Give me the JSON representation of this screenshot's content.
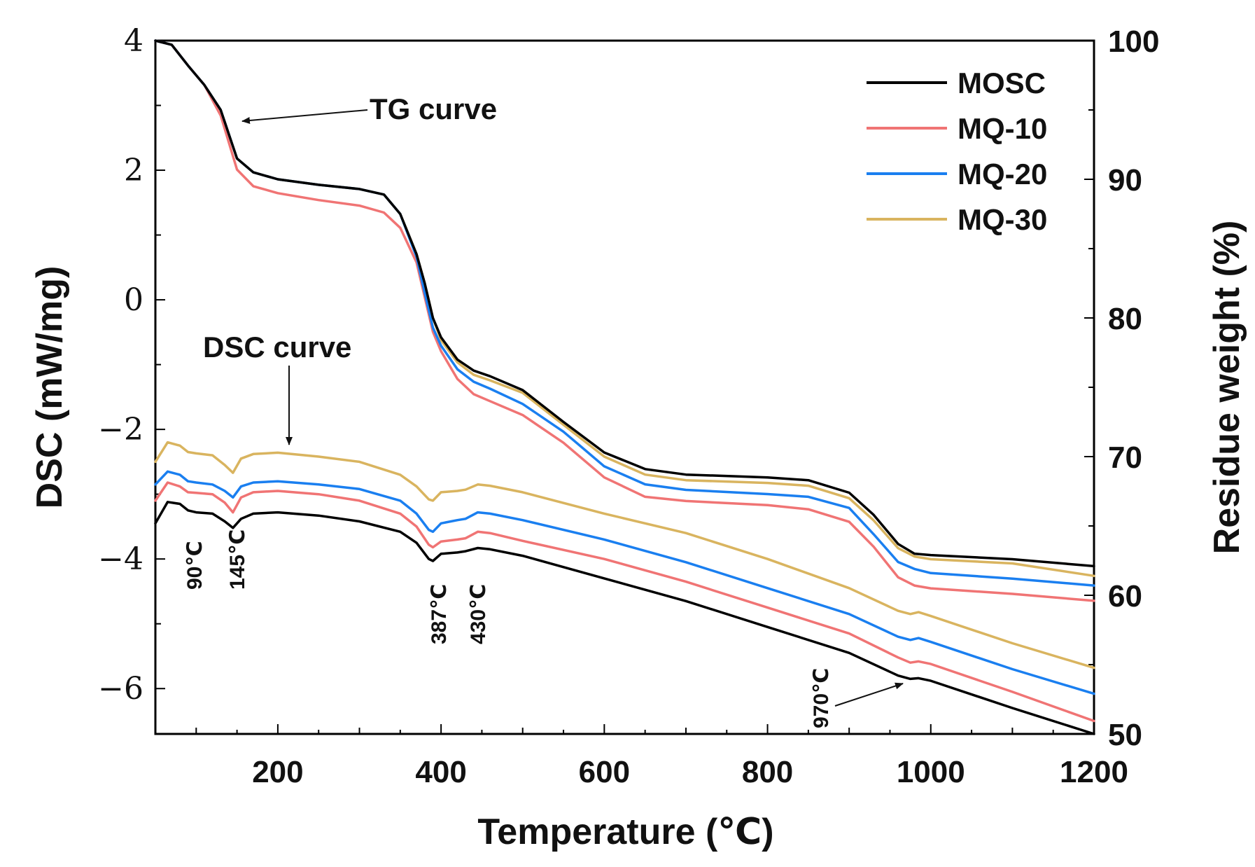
{
  "chart_data": {
    "type": "line",
    "x_axis": {
      "label": "Temperature (℃)",
      "range": [
        50,
        1200
      ],
      "ticks": [
        200,
        400,
        600,
        800,
        1000,
        1200
      ]
    },
    "y_left": {
      "label": "DSC (mW/mg)",
      "range": [
        -6.7,
        4
      ],
      "ticks": [
        "4",
        "2",
        "0",
        "−2",
        "−4",
        "−6"
      ],
      "tick_values": [
        4,
        2,
        0,
        -2,
        -4,
        -6
      ]
    },
    "y_right": {
      "label": "Residue weight (%)",
      "range": [
        50,
        100
      ],
      "ticks": [
        50,
        60,
        70,
        80,
        90,
        100
      ]
    },
    "legend": {
      "position": "top-right",
      "entries": [
        "MOSC",
        "MQ-10",
        "MQ-20",
        "MQ-30"
      ]
    },
    "colors": {
      "MOSC": "#000000",
      "MQ-10": "#f07474",
      "MQ-20": "#1a7ff0",
      "MQ-30": "#d9b45f"
    },
    "annotations": {
      "tg_curve": "TG curve",
      "dsc_curve": "DSC curve",
      "peaks": [
        "90℃",
        "145℃",
        "387℃",
        "430℃",
        "970℃"
      ]
    },
    "series_tg": [
      {
        "name": "MOSC",
        "axis": "right",
        "x": [
          50,
          70,
          90,
          110,
          130,
          150,
          170,
          200,
          250,
          300,
          330,
          350,
          370,
          380,
          390,
          400,
          420,
          440,
          460,
          500,
          550,
          600,
          650,
          700,
          800,
          850,
          900,
          930,
          960,
          980,
          1000,
          1100,
          1200
        ],
        "y": [
          100,
          99.7,
          98.2,
          96.8,
          95,
          91.5,
          90.5,
          90,
          89.6,
          89.3,
          88.9,
          87.5,
          84.6,
          82.5,
          80,
          78.6,
          77,
          76.2,
          75.8,
          74.8,
          72.5,
          70.3,
          69.1,
          68.7,
          68.5,
          68.3,
          67.4,
          65.8,
          63.7,
          63,
          62.9,
          62.6,
          62.1
        ]
      },
      {
        "name": "MQ-10",
        "axis": "right",
        "x": [
          50,
          70,
          90,
          110,
          130,
          150,
          170,
          200,
          250,
          300,
          330,
          350,
          370,
          380,
          390,
          400,
          420,
          440,
          460,
          500,
          550,
          600,
          650,
          700,
          800,
          850,
          900,
          930,
          960,
          980,
          1000,
          1100,
          1200
        ],
        "y": [
          100,
          99.7,
          98.2,
          96.8,
          94.6,
          90.7,
          89.5,
          89,
          88.5,
          88.1,
          87.6,
          86.5,
          84,
          81.5,
          79,
          77.6,
          75.6,
          74.5,
          74,
          73,
          71,
          68.5,
          67.1,
          66.8,
          66.5,
          66.2,
          65.3,
          63.5,
          61.3,
          60.7,
          60.5,
          60.1,
          59.6
        ]
      },
      {
        "name": "MQ-20",
        "axis": "right",
        "x": [
          50,
          70,
          90,
          110,
          130,
          150,
          170,
          200,
          250,
          300,
          330,
          350,
          370,
          380,
          390,
          400,
          420,
          440,
          460,
          500,
          550,
          600,
          650,
          700,
          800,
          850,
          900,
          930,
          960,
          980,
          1000,
          1100,
          1200
        ],
        "y": [
          100,
          99.7,
          98.2,
          96.8,
          95,
          91.5,
          90.5,
          90,
          89.6,
          89.3,
          88.9,
          87.5,
          84.4,
          81.8,
          79.3,
          78,
          76.3,
          75.4,
          74.9,
          73.8,
          71.8,
          69.3,
          68,
          67.6,
          67.3,
          67.1,
          66.3,
          64.4,
          62.4,
          61.9,
          61.6,
          61.2,
          60.7
        ]
      },
      {
        "name": "MQ-30",
        "axis": "right",
        "x": [
          50,
          70,
          90,
          110,
          130,
          150,
          170,
          200,
          250,
          300,
          330,
          350,
          370,
          380,
          390,
          400,
          420,
          440,
          460,
          500,
          550,
          600,
          650,
          700,
          800,
          850,
          900,
          930,
          960,
          980,
          1000,
          1100,
          1200
        ],
        "y": [
          100,
          99.7,
          98.2,
          96.8,
          95,
          91.5,
          90.5,
          90,
          89.6,
          89.3,
          88.9,
          87.5,
          84.6,
          82.5,
          80,
          78.4,
          76.8,
          75.9,
          75.5,
          74.6,
          72.3,
          70,
          68.7,
          68.3,
          68.1,
          67.9,
          67,
          65.4,
          63.4,
          62.8,
          62.6,
          62.3,
          61.4
        ]
      }
    ],
    "series_dsc": [
      {
        "name": "MOSC",
        "axis": "left",
        "x": [
          50,
          65,
          80,
          90,
          100,
          120,
          135,
          145,
          155,
          170,
          200,
          250,
          300,
          350,
          370,
          385,
          390,
          400,
          420,
          430,
          445,
          460,
          500,
          600,
          700,
          800,
          900,
          960,
          975,
          985,
          1000,
          1100,
          1200
        ],
        "y": [
          -3.45,
          -3.12,
          -3.15,
          -3.25,
          -3.28,
          -3.3,
          -3.42,
          -3.52,
          -3.38,
          -3.3,
          -3.28,
          -3.33,
          -3.42,
          -3.58,
          -3.75,
          -4.0,
          -4.03,
          -3.92,
          -3.9,
          -3.88,
          -3.83,
          -3.85,
          -3.95,
          -4.3,
          -4.65,
          -5.05,
          -5.45,
          -5.8,
          -5.85,
          -5.84,
          -5.88,
          -6.3,
          -6.7
        ]
      },
      {
        "name": "MQ-10",
        "axis": "left",
        "x": [
          50,
          65,
          80,
          90,
          100,
          120,
          135,
          145,
          155,
          170,
          200,
          250,
          300,
          350,
          370,
          385,
          390,
          400,
          420,
          430,
          445,
          460,
          500,
          600,
          700,
          800,
          900,
          960,
          975,
          985,
          1000,
          1100,
          1200
        ],
        "y": [
          -3.1,
          -2.82,
          -2.88,
          -2.97,
          -2.98,
          -3.0,
          -3.13,
          -3.28,
          -3.05,
          -2.97,
          -2.95,
          -3.0,
          -3.1,
          -3.3,
          -3.5,
          -3.78,
          -3.82,
          -3.73,
          -3.7,
          -3.68,
          -3.58,
          -3.6,
          -3.72,
          -4.0,
          -4.35,
          -4.75,
          -5.15,
          -5.52,
          -5.6,
          -5.58,
          -5.62,
          -6.05,
          -6.5
        ]
      },
      {
        "name": "MQ-20",
        "axis": "left",
        "x": [
          50,
          65,
          80,
          90,
          100,
          120,
          135,
          145,
          155,
          170,
          200,
          250,
          300,
          350,
          370,
          385,
          390,
          400,
          420,
          430,
          445,
          460,
          500,
          600,
          700,
          800,
          900,
          960,
          975,
          985,
          1000,
          1100,
          1200
        ],
        "y": [
          -2.85,
          -2.65,
          -2.7,
          -2.8,
          -2.82,
          -2.85,
          -2.95,
          -3.05,
          -2.88,
          -2.82,
          -2.8,
          -2.85,
          -2.92,
          -3.1,
          -3.3,
          -3.55,
          -3.58,
          -3.45,
          -3.4,
          -3.38,
          -3.28,
          -3.3,
          -3.4,
          -3.7,
          -4.05,
          -4.45,
          -4.85,
          -5.2,
          -5.25,
          -5.22,
          -5.28,
          -5.7,
          -6.08
        ]
      },
      {
        "name": "MQ-30",
        "axis": "left",
        "x": [
          50,
          65,
          80,
          90,
          100,
          120,
          135,
          145,
          155,
          170,
          200,
          250,
          300,
          350,
          370,
          385,
          390,
          400,
          420,
          430,
          445,
          460,
          500,
          600,
          700,
          800,
          900,
          960,
          975,
          985,
          1000,
          1100,
          1200
        ],
        "y": [
          -2.5,
          -2.2,
          -2.25,
          -2.35,
          -2.37,
          -2.4,
          -2.55,
          -2.67,
          -2.45,
          -2.38,
          -2.36,
          -2.42,
          -2.5,
          -2.7,
          -2.88,
          -3.08,
          -3.1,
          -2.97,
          -2.95,
          -2.93,
          -2.85,
          -2.87,
          -2.97,
          -3.3,
          -3.6,
          -4.0,
          -4.45,
          -4.8,
          -4.85,
          -4.82,
          -4.88,
          -5.3,
          -5.68
        ]
      }
    ]
  }
}
